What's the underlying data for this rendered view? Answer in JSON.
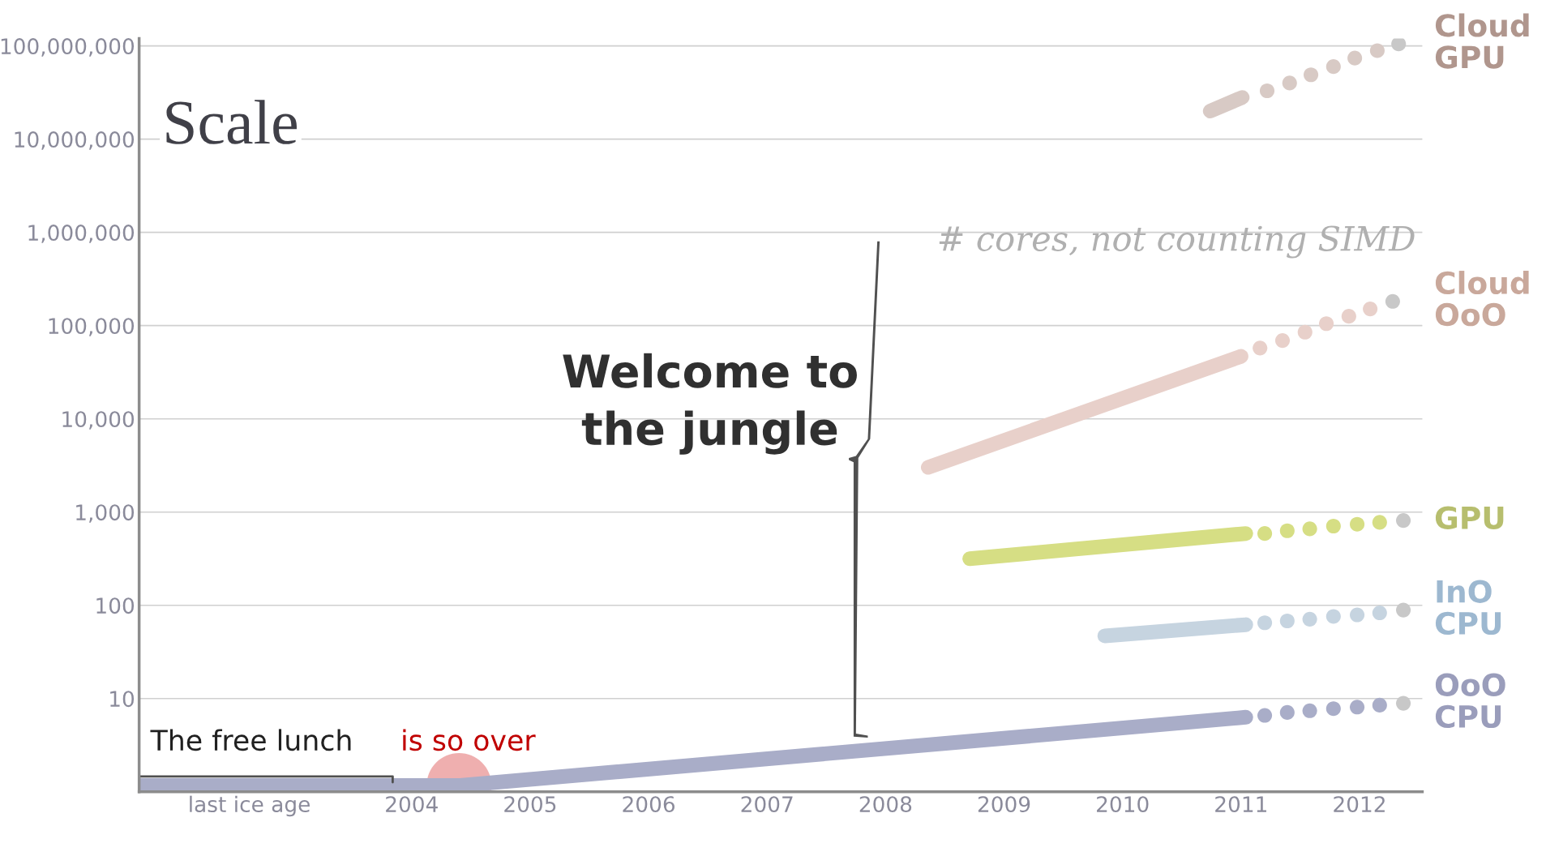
{
  "chart_data": {
    "type": "line",
    "title": "Scale",
    "subtitle": "# cores, not counting SIMD",
    "log": "y",
    "grid": "y",
    "legend": false,
    "xlim": [
      2001.7,
      2012.53
    ],
    "ylim": [
      1,
      120000000.0
    ],
    "xticks": [
      {
        "value": 2002.63,
        "label": "last ice age"
      },
      2004,
      2005,
      2006,
      2007,
      2008,
      2009,
      2010,
      2011,
      2012
    ],
    "yticks": [
      10,
      100,
      {
        "value": 1000,
        "label": "1,000"
      },
      {
        "value": 10000,
        "label": "10,000"
      },
      {
        "value": 100000,
        "label": "100,000"
      },
      {
        "value": 1000000,
        "label": "1,000,000"
      },
      {
        "value": 10000000,
        "label": "10,000,000"
      },
      {
        "value": 100000000,
        "label": "100,000,000"
      }
    ],
    "series": [
      {
        "color": "#a9adc8",
        "x": [
          2001.7,
          2004.41,
          2011.04
        ],
        "values": [
          1.17,
          1.17,
          6.3
        ]
      },
      {
        "type": "scatter",
        "marker": "circle",
        "name": "OoO CPU",
        "color": "#9a9dbb",
        "colors": [
          "#a9adc8",
          "#a9adc8",
          "#a9adc8",
          "#a9adc8",
          "#a9adc8",
          "#a9adc8",
          "#c8c8c8"
        ],
        "x": [
          2011.2,
          2011.39,
          2011.58,
          2011.78,
          2011.98,
          2012.17,
          2012.37
        ],
        "values": [
          6.6,
          7.1,
          7.4,
          7.8,
          8.1,
          8.5,
          8.9
        ]
      },
      {
        "color": "#c6d4e0",
        "x": [
          2009.85,
          2011.04
        ],
        "values": [
          47,
          62
        ]
      },
      {
        "type": "scatter",
        "marker": "circle",
        "name": "InO CPU",
        "color": "#9db8d0",
        "colors": [
          "#c6d4e0",
          "#c6d4e0",
          "#c6d4e0",
          "#c6d4e0",
          "#c6d4e0",
          "#c6d4e0",
          "#c8c8c8"
        ],
        "x": [
          2011.2,
          2011.39,
          2011.58,
          2011.78,
          2011.98,
          2012.17,
          2012.37
        ],
        "values": [
          65,
          68,
          71,
          76,
          79,
          83,
          89
        ]
      },
      {
        "color": "#d6de84",
        "x": [
          2008.71,
          2011.04
        ],
        "values": [
          316,
          589
        ]
      },
      {
        "type": "scatter",
        "marker": "circle",
        "name": "GPU",
        "color": "#b7be6e",
        "colors": [
          "#d6de84",
          "#d6de84",
          "#d6de84",
          "#d6de84",
          "#d6de84",
          "#d6de84",
          "#c8c8c8"
        ],
        "x": [
          2011.2,
          2011.39,
          2011.58,
          2011.78,
          2011.98,
          2012.17,
          2012.37
        ],
        "values": [
          589,
          631,
          661,
          708,
          741,
          776,
          813
        ]
      },
      {
        "color": "#e8d0ca",
        "x": [
          2008.36,
          2011.0
        ],
        "values": [
          3020,
          46800
        ]
      },
      {
        "type": "scatter",
        "marker": "circle",
        "name": "Cloud OoO",
        "color": "#c9a89b",
        "colors": [
          "#e8d0ca",
          "#e8d0ca",
          "#e8d0ca",
          "#e8d0ca",
          "#e8d0ca",
          "#e8d0ca",
          "#c8c8c8"
        ],
        "x": [
          2011.16,
          2011.35,
          2011.54,
          2011.72,
          2011.91,
          2012.09,
          2012.28
        ],
        "values": [
          57500,
          69200,
          85100,
          105000,
          126000,
          151000,
          182000
        ]
      },
      {
        "color": "#d8cac5",
        "x": [
          2010.74,
          2011.01
        ],
        "values": [
          20000000,
          28000000
        ]
      },
      {
        "type": "scatter",
        "marker": "circle",
        "name": "Cloud GPU",
        "color": "#b0968d",
        "colors": [
          "#d8cac5",
          "#d8cac5",
          "#d8cac5",
          "#d8cac5",
          "#d8cac5",
          "#d8cac5",
          "#c8c8c8"
        ],
        "x": [
          2011.22,
          2011.41,
          2011.59,
          2011.78,
          2011.96,
          2012.15,
          2012.33
        ],
        "values": [
          33000000,
          40000000,
          49000000,
          60000000,
          74000000,
          89000000,
          105000000
        ]
      }
    ],
    "annotations": [
      {
        "text": "The free lunch",
        "x": 2002.65,
        "y": 1.17
      },
      {
        "text": "is so over",
        "x": 2004.4,
        "y": 1.17
      },
      "Welcome to the jungle"
    ]
  }
}
